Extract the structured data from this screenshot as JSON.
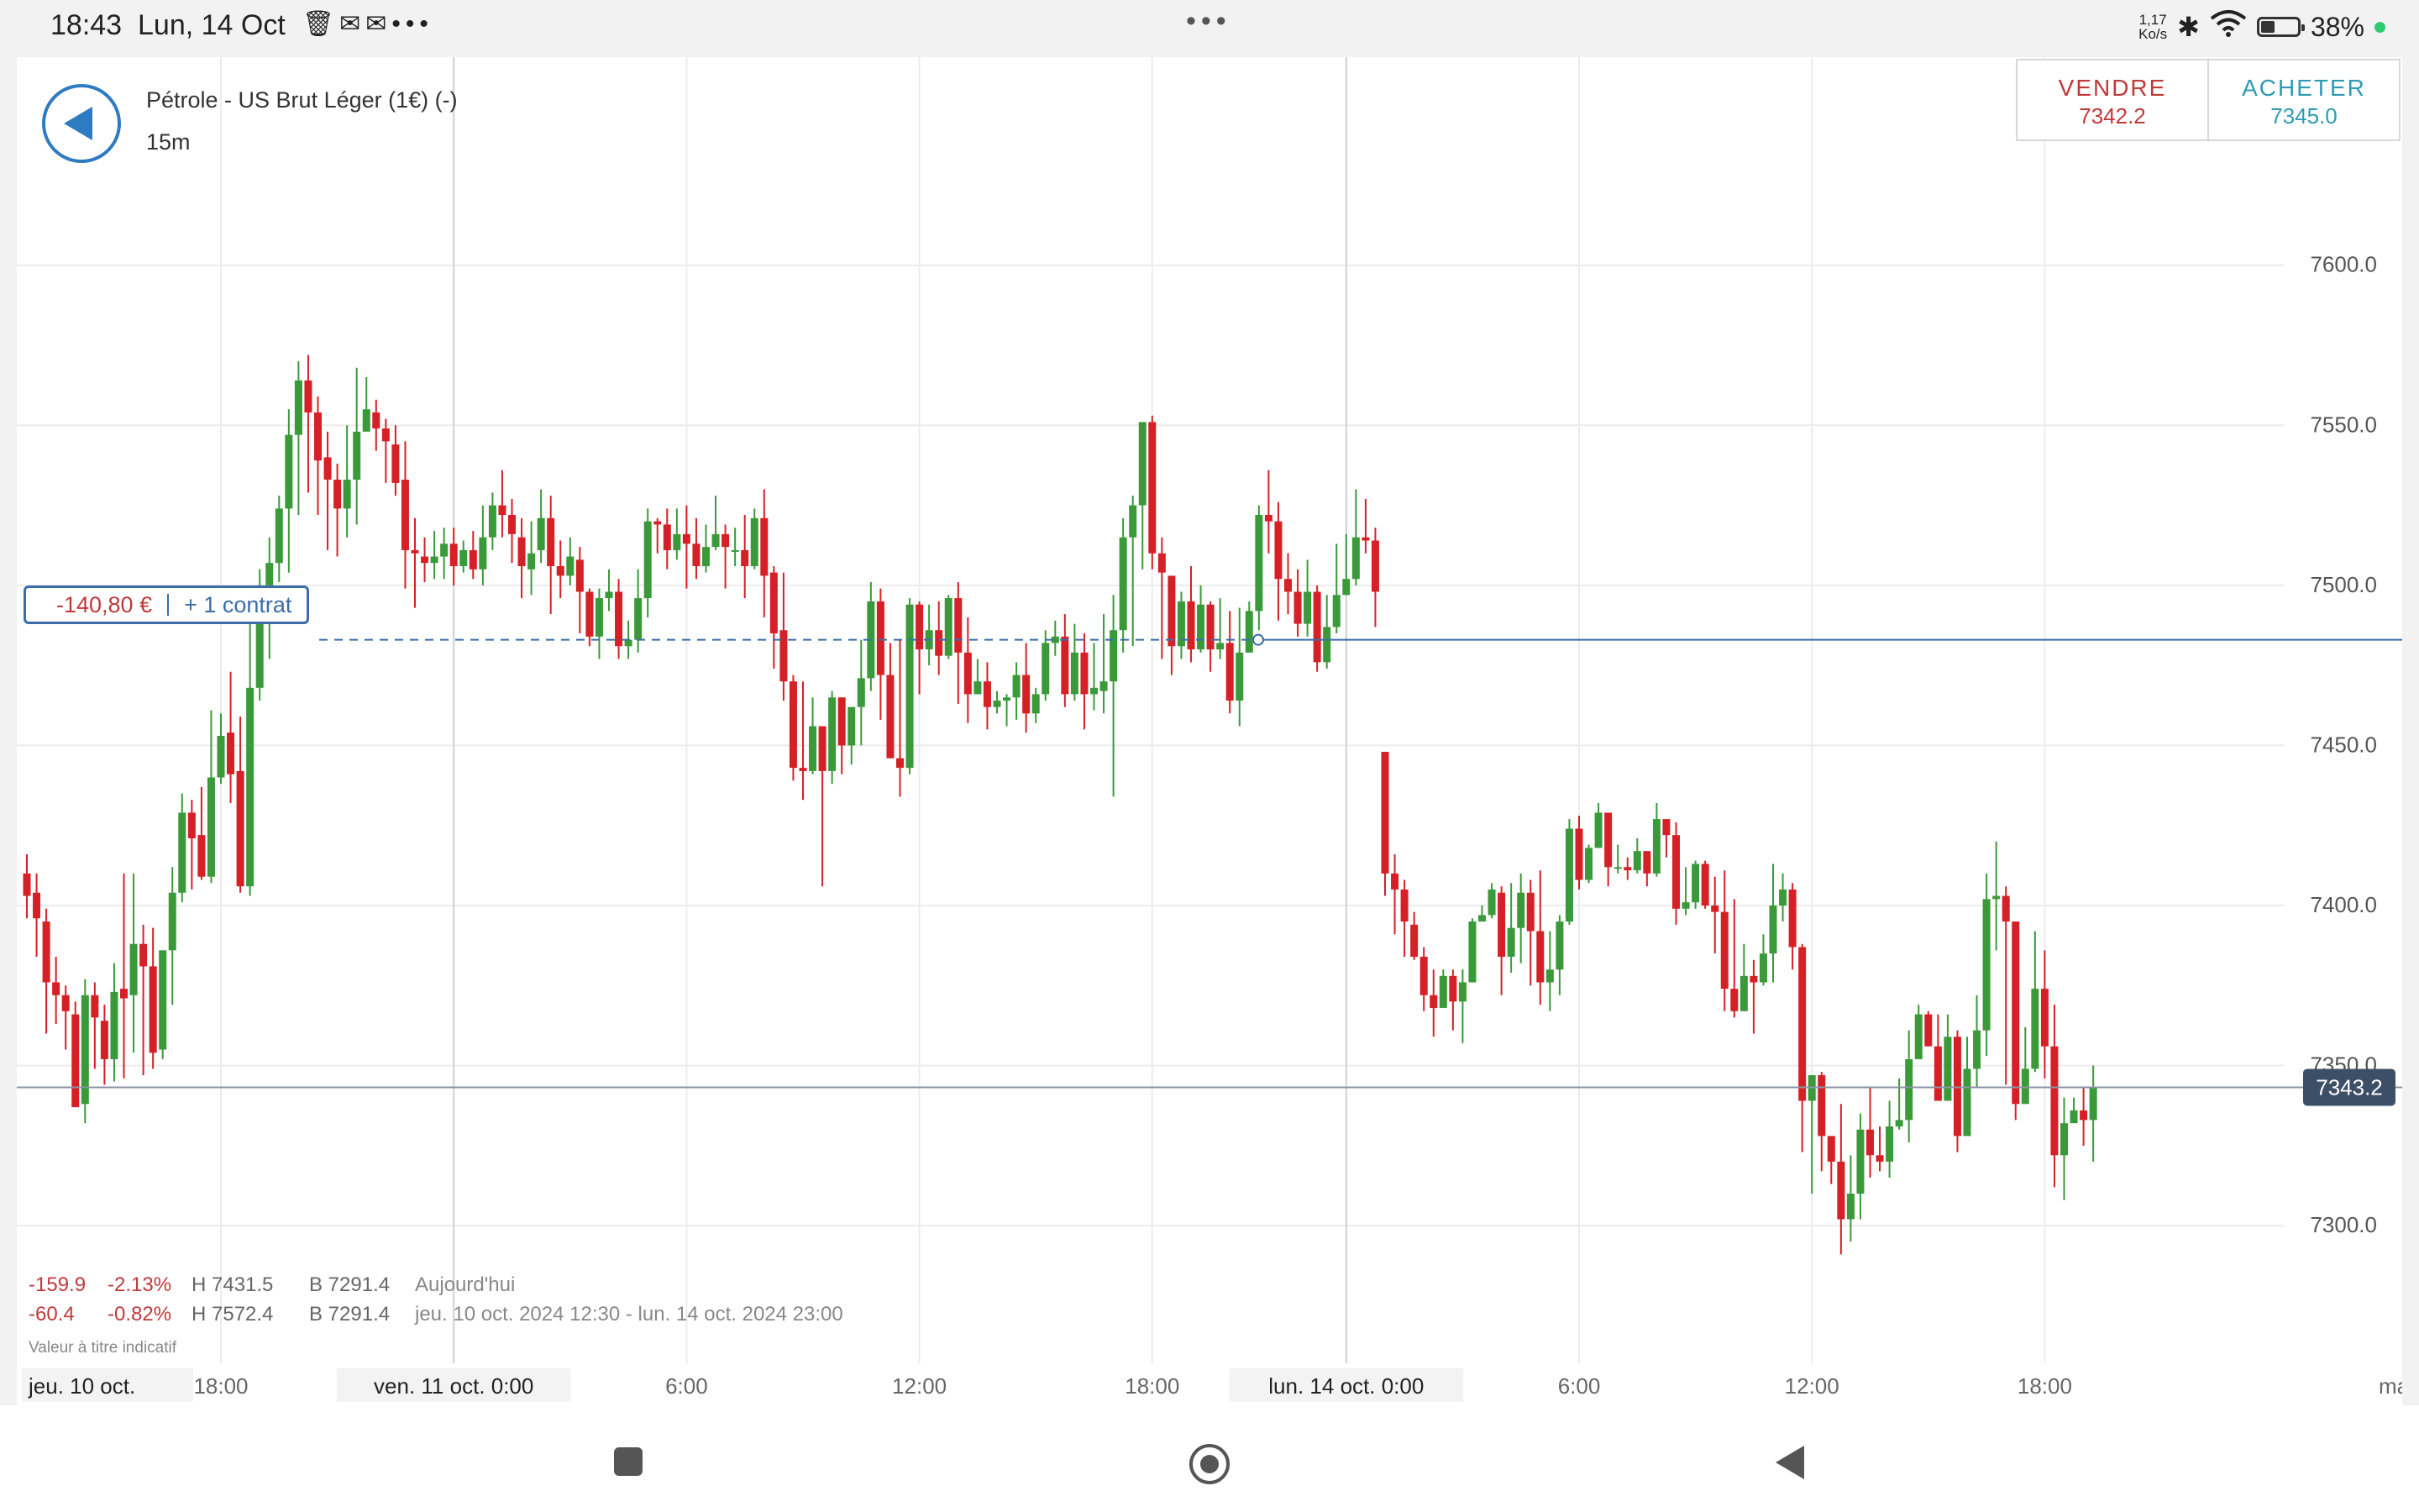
{
  "status_bar": {
    "time": "18:43",
    "date": "Lun, 14 Oct",
    "left_icons": [
      "trash-icon",
      "notification-icon",
      "notification-icon",
      "more-dots"
    ],
    "center_dots": "•••",
    "net_speed_value": "1,17",
    "net_speed_unit": "Ko/s",
    "battery": "38%",
    "battery_level": 0.38
  },
  "header": {
    "instrument": "Pétrole - US Brut Léger (1€) (-)",
    "timeframe": "15m"
  },
  "trade": {
    "sell_label": "VENDRE",
    "sell_price": "7342.2",
    "buy_label": "ACHETER",
    "buy_price": "7345.0"
  },
  "position": {
    "pl": "-140,80 €",
    "size": "+ 1 contrat",
    "price": 7483
  },
  "stats": {
    "today": {
      "change": "-159.9",
      "change_pct": "-2.13%",
      "high": "H 7431.5",
      "low": "B 7291.4",
      "label": "Aujourd'hui"
    },
    "period": {
      "change": "-60.4",
      "change_pct": "-0.82%",
      "high": "H 7572.4",
      "low": "B 7291.4",
      "label": "jeu. 10 oct. 2024 12:30 - lun. 14 oct. 2024 23:00"
    }
  },
  "disclaimer": "Valeur à titre indicatif",
  "colors": {
    "up": "#3a9a3a",
    "down": "#d62027",
    "position_line": "#3b6ea8",
    "price_badge": "#3d4f66"
  },
  "chart_data": {
    "type": "candlestick",
    "timeframe": "15m",
    "y_ticks": [
      "7600.0",
      "7550.0",
      "7500.0",
      "7450.0",
      "7400.0",
      "7350.0",
      "7300.0"
    ],
    "y_tick_values": [
      7600,
      7550,
      7500,
      7450,
      7400,
      7350,
      7300
    ],
    "ylim": [
      7257,
      7665
    ],
    "x_labels": [
      {
        "label": "jeu. 10 oct.",
        "index": -3,
        "badge": true
      },
      {
        "label": "18:00",
        "index": 20
      },
      {
        "label": "ven. 11 oct. 0:00",
        "index": 44,
        "badge": true
      },
      {
        "label": "6:00",
        "index": 68
      },
      {
        "label": "12:00",
        "index": 92
      },
      {
        "label": "18:00",
        "index": 116
      },
      {
        "label": "lun. 14 oct. 0:00",
        "index": 136,
        "badge": true
      },
      {
        "label": "6:00",
        "index": 160
      },
      {
        "label": "12:00",
        "index": 184
      },
      {
        "label": "18:00",
        "index": 208
      },
      {
        "label": "ma",
        "index": 232
      }
    ],
    "session_separators": [
      44,
      136
    ],
    "current_price": "7343.2",
    "current_value": 7343.2,
    "candles": [
      [
        7410,
        7403,
        7416,
        7396
      ],
      [
        7404,
        7396,
        7410,
        7384
      ],
      [
        7395,
        7376,
        7399,
        7360
      ],
      [
        7376,
        7372,
        7384,
        7363
      ],
      [
        7372,
        7367,
        7375,
        7355
      ],
      [
        7366,
        7337,
        7370,
        7337
      ],
      [
        7338,
        7372,
        7377,
        7332
      ],
      [
        7372,
        7365,
        7376,
        7349
      ],
      [
        7364,
        7352,
        7369,
        7344
      ],
      [
        7352,
        7373,
        7382,
        7345
      ],
      [
        7374,
        7371,
        7410,
        7346
      ],
      [
        7372,
        7388,
        7410,
        7354
      ],
      [
        7388,
        7381,
        7394,
        7347
      ],
      [
        7381,
        7354,
        7393,
        7349
      ],
      [
        7355,
        7386,
        7386,
        7352
      ],
      [
        7386,
        7404,
        7412,
        7369
      ],
      [
        7404,
        7429,
        7435,
        7401
      ],
      [
        7429,
        7421,
        7433,
        7405
      ],
      [
        7422,
        7409,
        7437,
        7408
      ],
      [
        7409,
        7440,
        7461,
        7407
      ],
      [
        7440,
        7453,
        7460,
        7438
      ],
      [
        7454,
        7441,
        7473,
        7432
      ],
      [
        7442,
        7406,
        7459,
        7404
      ],
      [
        7406,
        7468,
        7493,
        7403
      ],
      [
        7468,
        7500,
        7505,
        7464
      ],
      [
        7500,
        7507,
        7515,
        7477
      ],
      [
        7507,
        7524,
        7528,
        7501
      ],
      [
        7524,
        7547,
        7555,
        7504
      ],
      [
        7547,
        7564,
        7570,
        7522
      ],
      [
        7564,
        7554,
        7572,
        7529
      ],
      [
        7554,
        7539,
        7559,
        7522
      ],
      [
        7540,
        7533,
        7548,
        7511
      ],
      [
        7533,
        7524,
        7538,
        7509
      ],
      [
        7524,
        7533,
        7550,
        7515
      ],
      [
        7533,
        7548,
        7568,
        7519
      ],
      [
        7548,
        7555,
        7565,
        7550
      ],
      [
        7554,
        7549,
        7558,
        7542
      ],
      [
        7549,
        7545,
        7552,
        7532
      ],
      [
        7544,
        7532,
        7550,
        7528
      ],
      [
        7533,
        7511,
        7545,
        7499
      ],
      [
        7511,
        7510,
        7521,
        7493
      ],
      [
        7509,
        7507,
        7515,
        7501
      ],
      [
        7507,
        7509,
        7517,
        7502
      ],
      [
        7509,
        7513,
        7518,
        7502
      ],
      [
        7513,
        7506,
        7518,
        7500
      ],
      [
        7506,
        7511,
        7514,
        7504
      ],
      [
        7511,
        7505,
        7517,
        7502
      ],
      [
        7505,
        7515,
        7525,
        7500
      ],
      [
        7515,
        7525,
        7529,
        7511
      ],
      [
        7525,
        7522,
        7536,
        7515
      ],
      [
        7522,
        7516,
        7527,
        7507
      ],
      [
        7515,
        7506,
        7521,
        7496
      ],
      [
        7505,
        7510,
        7520,
        7497
      ],
      [
        7511,
        7521,
        7530,
        7507
      ],
      [
        7521,
        7506,
        7528,
        7491
      ],
      [
        7506,
        7503,
        7514,
        7496
      ],
      [
        7503,
        7509,
        7515,
        7500
      ],
      [
        7508,
        7498,
        7512,
        7485
      ],
      [
        7498,
        7484,
        7499,
        7481
      ],
      [
        7484,
        7496,
        7499,
        7477
      ],
      [
        7496,
        7498,
        7505,
        7492
      ],
      [
        7498,
        7481,
        7502,
        7477
      ],
      [
        7481,
        7483,
        7489,
        7477
      ],
      [
        7483,
        7496,
        7505,
        7479
      ],
      [
        7496,
        7520,
        7524,
        7490
      ],
      [
        7520,
        7519,
        7521,
        7510
      ],
      [
        7519,
        7511,
        7524,
        7505
      ],
      [
        7511,
        7516,
        7524,
        7508
      ],
      [
        7516,
        7513,
        7525,
        7499
      ],
      [
        7513,
        7506,
        7521,
        7502
      ],
      [
        7506,
        7512,
        7519,
        7504
      ],
      [
        7512,
        7516,
        7528,
        7511
      ],
      [
        7516,
        7512,
        7519,
        7499
      ],
      [
        7511,
        7511,
        7518,
        7506
      ],
      [
        7511,
        7506,
        7522,
        7496
      ],
      [
        7506,
        7521,
        7524,
        7505
      ],
      [
        7521,
        7503,
        7530,
        7490
      ],
      [
        7504,
        7485,
        7506,
        7474
      ],
      [
        7486,
        7470,
        7504,
        7464
      ],
      [
        7470,
        7443,
        7472,
        7439
      ],
      [
        7443,
        7442,
        7470,
        7433
      ],
      [
        7442,
        7456,
        7465,
        7441
      ],
      [
        7456,
        7442,
        7456,
        7406
      ],
      [
        7442,
        7465,
        7467,
        7438
      ],
      [
        7465,
        7450,
        7465,
        7441
      ],
      [
        7450,
        7462,
        7462,
        7444
      ],
      [
        7462,
        7471,
        7483,
        7450
      ],
      [
        7471,
        7495,
        7501,
        7467
      ],
      [
        7495,
        7472,
        7499,
        7458
      ],
      [
        7472,
        7446,
        7482,
        7446
      ],
      [
        7446,
        7443,
        7483,
        7434
      ],
      [
        7443,
        7494,
        7496,
        7441
      ],
      [
        7494,
        7480,
        7495,
        7466
      ],
      [
        7480,
        7486,
        7494,
        7475
      ],
      [
        7486,
        7478,
        7495,
        7472
      ],
      [
        7478,
        7496,
        7497,
        7477
      ],
      [
        7496,
        7479,
        7501,
        7463
      ],
      [
        7479,
        7466,
        7490,
        7457
      ],
      [
        7466,
        7470,
        7477,
        7466
      ],
      [
        7470,
        7462,
        7476,
        7455
      ],
      [
        7462,
        7464,
        7467,
        7460
      ],
      [
        7464,
        7465,
        7466,
        7456
      ],
      [
        7465,
        7472,
        7476,
        7458
      ],
      [
        7472,
        7460,
        7482,
        7454
      ],
      [
        7460,
        7466,
        7468,
        7457
      ],
      [
        7466,
        7482,
        7486,
        7464
      ],
      [
        7482,
        7484,
        7489,
        7478
      ],
      [
        7484,
        7466,
        7491,
        7462
      ],
      [
        7466,
        7479,
        7488,
        7464
      ],
      [
        7479,
        7466,
        7485,
        7455
      ],
      [
        7466,
        7468,
        7482,
        7461
      ],
      [
        7467,
        7470,
        7491,
        7460
      ],
      [
        7470,
        7486,
        7497,
        7434
      ],
      [
        7486,
        7515,
        7521,
        7479
      ],
      [
        7515,
        7525,
        7528,
        7481
      ],
      [
        7525,
        7551,
        7551,
        7505
      ],
      [
        7551,
        7510,
        7553,
        7505
      ],
      [
        7510,
        7504,
        7515,
        7477
      ],
      [
        7503,
        7481,
        7502,
        7472
      ],
      [
        7481,
        7495,
        7498,
        7477
      ],
      [
        7495,
        7480,
        7506,
        7476
      ],
      [
        7480,
        7494,
        7500,
        7479
      ],
      [
        7494,
        7480,
        7495,
        7473
      ],
      [
        7480,
        7482,
        7496,
        7477
      ],
      [
        7482,
        7464,
        7492,
        7460
      ],
      [
        7464,
        7479,
        7493,
        7456
      ],
      [
        7479,
        7492,
        7495,
        7485
      ],
      [
        7492,
        7522,
        7525,
        7486
      ],
      [
        7522,
        7520,
        7536,
        7510
      ],
      [
        7520,
        7502,
        7526,
        7489
      ],
      [
        7502,
        7498,
        7510,
        7491
      ],
      [
        7498,
        7488,
        7505,
        7484
      ],
      [
        7488,
        7498,
        7508,
        7484
      ],
      [
        7498,
        7476,
        7500,
        7473
      ],
      [
        7476,
        7487,
        7497,
        7474
      ],
      [
        7487,
        7497,
        7513,
        7485
      ],
      [
        7497,
        7502,
        7516,
        7497
      ],
      [
        7502,
        7515,
        7530,
        7500
      ],
      [
        7515,
        7514,
        7527,
        7510
      ],
      [
        7514,
        7498,
        7518,
        7487
      ],
      [
        7448,
        7410,
        7448,
        7403
      ],
      [
        7410,
        7405,
        7416,
        7391
      ],
      [
        7405,
        7395,
        7408,
        7384
      ],
      [
        7394,
        7384,
        7398,
        7383
      ],
      [
        7384,
        7372,
        7387,
        7367
      ],
      [
        7372,
        7368,
        7380,
        7359
      ],
      [
        7368,
        7378,
        7380,
        7372
      ],
      [
        7378,
        7370,
        7380,
        7361
      ],
      [
        7370,
        7376,
        7380,
        7357
      ],
      [
        7376,
        7395,
        7396,
        7379
      ],
      [
        7395,
        7397,
        7400,
        7396
      ],
      [
        7397,
        7405,
        7407,
        7396
      ],
      [
        7404,
        7384,
        7406,
        7372
      ],
      [
        7384,
        7393,
        7407,
        7379
      ],
      [
        7393,
        7404,
        7410,
        7382
      ],
      [
        7404,
        7392,
        7408,
        7375
      ],
      [
        7392,
        7376,
        7411,
        7369
      ],
      [
        7376,
        7380,
        7392,
        7367
      ],
      [
        7380,
        7395,
        7397,
        7372
      ],
      [
        7395,
        7424,
        7427,
        7394
      ],
      [
        7424,
        7408,
        7428,
        7405
      ],
      [
        7408,
        7418,
        7419,
        7407
      ],
      [
        7418,
        7429,
        7432,
        7418
      ],
      [
        7429,
        7412,
        7426,
        7406
      ],
      [
        7412,
        7412,
        7419,
        7410
      ],
      [
        7412,
        7411,
        7415,
        7408
      ],
      [
        7411,
        7417,
        7421,
        7410
      ],
      [
        7417,
        7410,
        7417,
        7406
      ],
      [
        7410,
        7427,
        7432,
        7409
      ],
      [
        7427,
        7422,
        7426,
        7415
      ],
      [
        7422,
        7399,
        7426,
        7394
      ],
      [
        7399,
        7401,
        7412,
        7397
      ],
      [
        7401,
        7413,
        7414,
        7399
      ],
      [
        7413,
        7400,
        7414,
        7399
      ],
      [
        7400,
        7398,
        7409,
        7385
      ],
      [
        7398,
        7374,
        7411,
        7367
      ],
      [
        7374,
        7367,
        7402,
        7365
      ],
      [
        7367,
        7378,
        7388,
        7367
      ],
      [
        7378,
        7376,
        7383,
        7360
      ],
      [
        7376,
        7385,
        7391,
        7375
      ],
      [
        7385,
        7400,
        7413,
        7376
      ],
      [
        7400,
        7405,
        7410,
        7395
      ],
      [
        7405,
        7387,
        7407,
        7380
      ],
      [
        7387,
        7339,
        7388,
        7323
      ],
      [
        7339,
        7347,
        7346,
        7310
      ],
      [
        7347,
        7328,
        7348,
        7317
      ],
      [
        7328,
        7320,
        7328,
        7313
      ],
      [
        7320,
        7302,
        7338,
        7291
      ],
      [
        7302,
        7310,
        7322,
        7295
      ],
      [
        7310,
        7330,
        7335,
        7302
      ],
      [
        7330,
        7322,
        7343,
        7315
      ],
      [
        7322,
        7320,
        7331,
        7317
      ],
      [
        7320,
        7331,
        7339,
        7315
      ],
      [
        7331,
        7333,
        7346,
        7330
      ],
      [
        7333,
        7352,
        7361,
        7326
      ],
      [
        7352,
        7366,
        7369,
        7354
      ],
      [
        7366,
        7356,
        7367,
        7358
      ],
      [
        7356,
        7339,
        7366,
        7343
      ],
      [
        7339,
        7359,
        7366,
        7344
      ],
      [
        7359,
        7328,
        7361,
        7323
      ],
      [
        7328,
        7349,
        7359,
        7332
      ],
      [
        7349,
        7361,
        7372,
        7343
      ],
      [
        7361,
        7402,
        7410,
        7353
      ],
      [
        7402,
        7403,
        7420,
        7386
      ],
      [
        7403,
        7395,
        7406,
        7344
      ],
      [
        7395,
        7338,
        7395,
        7333
      ],
      [
        7338,
        7349,
        7362,
        7345
      ],
      [
        7349,
        7374,
        7392,
        7348
      ],
      [
        7374,
        7356,
        7386,
        7346
      ],
      [
        7356,
        7322,
        7369,
        7312
      ],
      [
        7322,
        7332,
        7340,
        7308
      ],
      [
        7332,
        7336,
        7340,
        7332
      ],
      [
        7336,
        7333,
        7343,
        7325
      ],
      [
        7333,
        7343,
        7350,
        7320
      ]
    ]
  }
}
